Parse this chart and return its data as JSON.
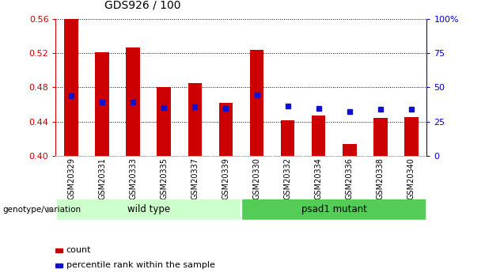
{
  "title": "GDS926 / 100",
  "samples": [
    "GSM20329",
    "GSM20331",
    "GSM20333",
    "GSM20335",
    "GSM20337",
    "GSM20339",
    "GSM20330",
    "GSM20332",
    "GSM20334",
    "GSM20336",
    "GSM20338",
    "GSM20340"
  ],
  "bar_bottom": 0.4,
  "bar_tops": [
    0.56,
    0.521,
    0.527,
    0.48,
    0.485,
    0.462,
    0.524,
    0.441,
    0.447,
    0.414,
    0.444,
    0.445
  ],
  "dot_values": [
    0.47,
    0.463,
    0.463,
    0.456,
    0.457,
    0.455,
    0.471,
    0.458,
    0.455,
    0.452,
    0.454,
    0.454
  ],
  "ylim_left": [
    0.4,
    0.56
  ],
  "yticks_left": [
    0.4,
    0.44,
    0.48,
    0.52,
    0.56
  ],
  "yticks_right_vals": [
    0,
    25,
    50,
    75,
    100
  ],
  "yticks_right_labels": [
    "0",
    "25",
    "50",
    "75",
    "100%"
  ],
  "bar_color": "#cc0000",
  "dot_color": "#1111cc",
  "groups": [
    {
      "label": "wild type",
      "start": 0,
      "end": 6,
      "color": "#ccffcc"
    },
    {
      "label": "psad1 mutant",
      "start": 6,
      "end": 12,
      "color": "#55cc55"
    }
  ],
  "group_label": "genotype/variation",
  "legend_items": [
    {
      "label": "count",
      "color": "#cc0000"
    },
    {
      "label": "percentile rank within the sample",
      "color": "#1111cc"
    }
  ],
  "grid_color": "#000000",
  "background_color": "#ffffff",
  "plot_bg_color": "#ffffff",
  "axis_left_color": "#cc0000",
  "axis_right_color": "#0000cc",
  "bar_width": 0.45,
  "figsize": [
    6.13,
    3.45
  ],
  "dpi": 100
}
